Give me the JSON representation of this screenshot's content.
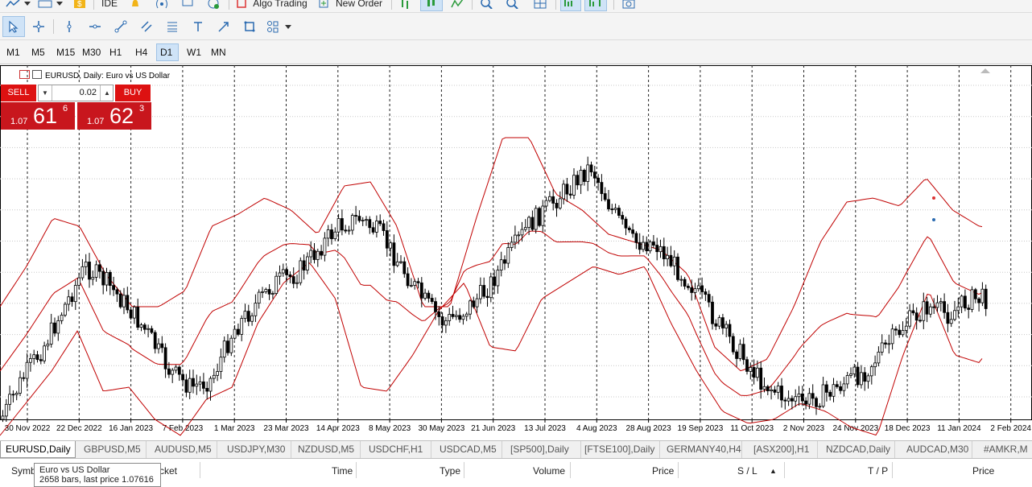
{
  "toolbar": {
    "ide_label": "IDE",
    "algo_trading_label": "Algo Trading",
    "new_order_label": "New Order"
  },
  "timeframes": [
    {
      "label": "M1",
      "active": false
    },
    {
      "label": "M5",
      "active": false
    },
    {
      "label": "M15",
      "active": false
    },
    {
      "label": "M30",
      "active": false
    },
    {
      "label": "H1",
      "active": false
    },
    {
      "label": "H4",
      "active": false
    },
    {
      "label": "D1",
      "active": true
    },
    {
      "label": "W1",
      "active": false
    },
    {
      "label": "MN",
      "active": false
    }
  ],
  "chart": {
    "title": "EURUSD, Daily:  Euro vs US Dollar"
  },
  "trade_panel": {
    "sell_label": "SELL",
    "buy_label": "BUY",
    "lot": "0.02",
    "sell_price": {
      "prefix": "1.07",
      "big": "61",
      "sup": "6"
    },
    "buy_price": {
      "prefix": "1.07",
      "big": "62",
      "sup": "3"
    }
  },
  "tabs": [
    {
      "label": "EURUSD,Daily",
      "active": true
    },
    {
      "label": "GBPUSD,M5"
    },
    {
      "label": "AUDUSD,M5"
    },
    {
      "label": "USDJPY,M30"
    },
    {
      "label": "NZDUSD,M5"
    },
    {
      "label": "USDCHF,H1"
    },
    {
      "label": "USDCAD,M5"
    },
    {
      "label": "[SP500],Daily"
    },
    {
      "label": "[FTSE100],Daily"
    },
    {
      "label": "GERMANY40,H4"
    },
    {
      "label": "[ASX200],H1"
    },
    {
      "label": "NZDCAD,Daily"
    },
    {
      "label": "AUDCAD,M30"
    },
    {
      "label": "#AMKR,M"
    }
  ],
  "table_headers": {
    "symbol": "Symb",
    "ticket": "cket",
    "time": "Time",
    "type": "Type",
    "volume": "Volume",
    "price": "Price",
    "sl": "S / L",
    "tp": "T / P",
    "price2": "Price"
  },
  "tooltip": {
    "line1": "Euro vs US Dollar",
    "line2": "2658 bars, last price 1.07616"
  },
  "colors": {
    "bollinger": "#c00000",
    "sell_bg": "#c8161d",
    "active_tf_bg": "#cfe3f7"
  },
  "chart_data": {
    "type": "candlestick",
    "symbol": "EURUSD",
    "timeframe": "Daily",
    "indicator": "Bollinger Bands",
    "x_ticks": [
      "30 Nov 2022",
      "22 Dec 2022",
      "16 Jan 2023",
      "7 Feb 2023",
      "1 Mar 2023",
      "23 Mar 2023",
      "14 Apr 2023",
      "8 May 2023",
      "30 May 2023",
      "21 Jun 2023",
      "13 Jul 2023",
      "4 Aug 2023",
      "28 Aug 2023",
      "19 Sep 2023",
      "11 Oct 2023",
      "2 Nov 2023",
      "24 Nov 2023",
      "18 Dec 2023",
      "11 Jan 2024",
      "2 Feb 2024"
    ],
    "close_profile": [
      440,
      390,
      350,
      300,
      250,
      270,
      300,
      335,
      380,
      400,
      390,
      330,
      300,
      270,
      260,
      230,
      200,
      190,
      210,
      250,
      290,
      320,
      305,
      280,
      240,
      200,
      175,
      150,
      125,
      180,
      220,
      220,
      250,
      280,
      320,
      355,
      390,
      410,
      420,
      410,
      395,
      380,
      350,
      320,
      300,
      310,
      290,
      290,
      275,
      305
    ],
    "upper_profile": [
      300,
      250,
      190,
      200,
      260,
      300,
      300,
      280,
      200,
      185,
      165,
      180,
      210,
      150,
      145,
      200,
      300,
      300,
      190,
      90,
      90,
      160,
      180,
      210,
      220,
      230,
      260,
      350,
      380,
      365,
      300,
      220,
      170,
      165,
      175,
      140,
      180,
      200,
      205,
      270
    ],
    "lower_profile": [
      460,
      420,
      380,
      330,
      405,
      400,
      440,
      460,
      415,
      400,
      320,
      270,
      245,
      290,
      400,
      405,
      360,
      305,
      270,
      350,
      355,
      290,
      270,
      250,
      260,
      250,
      320,
      380,
      430,
      445,
      440,
      420,
      430,
      450,
      460,
      360,
      280,
      360,
      370,
      285,
      300
    ]
  }
}
